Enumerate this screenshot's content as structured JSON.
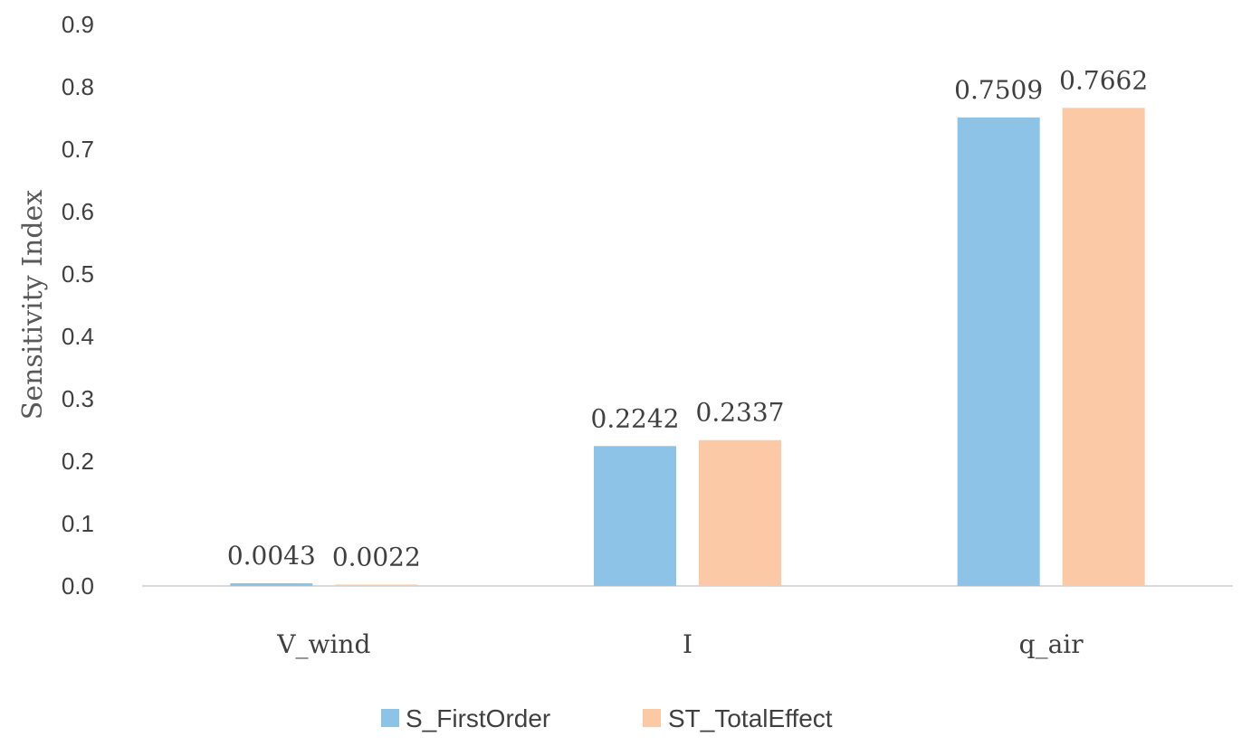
{
  "chart_data": {
    "type": "bar",
    "categories": [
      "V_wind",
      "I",
      "q_air"
    ],
    "series": [
      {
        "name": "S_FirstOrder",
        "values": [
          0.0043,
          0.2242,
          0.7509
        ],
        "labels": [
          "0.0043",
          "0.2242",
          "0.7509"
        ],
        "color": "#8DC3E7"
      },
      {
        "name": "ST_TotalEffect",
        "values": [
          0.0022,
          0.2337,
          0.7662
        ],
        "labels": [
          "0.0022",
          "0.2337",
          "0.7662"
        ],
        "color": "#FCC9A6"
      }
    ],
    "title": "",
    "xlabel": "",
    "ylabel": "Sensitivity Index",
    "ylim": [
      0,
      0.9
    ],
    "yticks": [
      "0.0",
      "0.1",
      "0.2",
      "0.3",
      "0.4",
      "0.5",
      "0.6",
      "0.7",
      "0.8",
      "0.9"
    ],
    "grid": false,
    "legend_position": "bottom-center"
  }
}
